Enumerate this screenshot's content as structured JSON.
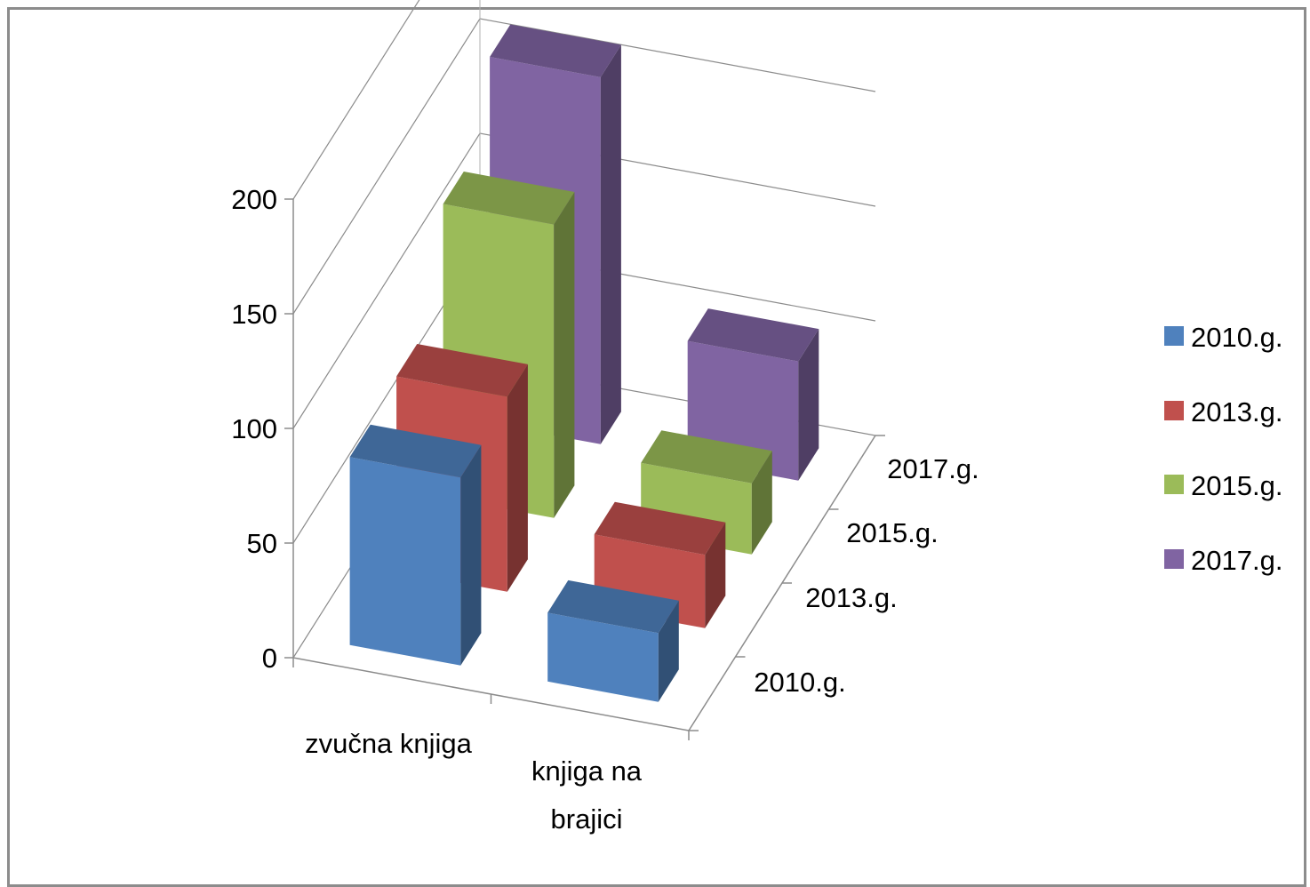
{
  "chart_data": {
    "type": "bar",
    "categories": [
      "zvučna knjiga",
      "knjiga na brajici"
    ],
    "category_label_lines": [
      [
        "zvučna knjiga"
      ],
      [
        "knjiga na",
        "brajici"
      ]
    ],
    "depth_categories": [
      "2010.g.",
      "2013.g.",
      "2015.g.",
      "2017.g."
    ],
    "series": [
      {
        "name": "2010.g.",
        "color": "#4f81bd",
        "values": [
          82,
          30
        ]
      },
      {
        "name": "2013.g.",
        "color": "#c0504d",
        "values": [
          85,
          32
        ]
      },
      {
        "name": "2015.g.",
        "color": "#9bbb59",
        "values": [
          128,
          31
        ]
      },
      {
        "name": "2017.g.",
        "color": "#8064a2",
        "values": [
          160,
          52
        ]
      }
    ],
    "ylim": [
      0,
      200
    ],
    "yticks": [
      "0",
      "50",
      "100",
      "150",
      "200"
    ],
    "grid": true,
    "legend_position": "right",
    "projection": "3d"
  }
}
